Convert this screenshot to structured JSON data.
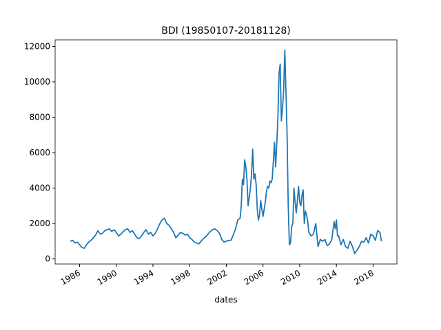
{
  "chart_data": {
    "type": "line",
    "title": "BDI (19850107-20181128)",
    "x_label": "dates",
    "xlim": [
      1983.33,
      2020.6
    ],
    "xticks": [
      1986,
      1990,
      1994,
      1998,
      2002,
      2006,
      2010,
      2014,
      2018
    ],
    "ylim": [
      -285,
      12368
    ],
    "yticks": [
      0,
      2000,
      4000,
      6000,
      8000,
      10000,
      12000
    ],
    "x": [
      1985.0,
      1985.25,
      1985.5,
      1985.75,
      1986.0,
      1986.25,
      1986.5,
      1986.75,
      1987.0,
      1987.25,
      1987.5,
      1987.75,
      1988.0,
      1988.25,
      1988.5,
      1988.75,
      1989.0,
      1989.25,
      1989.5,
      1989.75,
      1990.0,
      1990.25,
      1990.5,
      1990.75,
      1991.0,
      1991.25,
      1991.5,
      1991.75,
      1992.0,
      1992.25,
      1992.5,
      1992.75,
      1993.0,
      1993.25,
      1993.5,
      1993.75,
      1994.0,
      1994.25,
      1994.5,
      1994.75,
      1995.0,
      1995.25,
      1995.5,
      1995.75,
      1996.0,
      1996.25,
      1996.5,
      1996.75,
      1997.0,
      1997.25,
      1997.5,
      1997.75,
      1998.0,
      1998.25,
      1998.5,
      1998.75,
      1999.0,
      1999.25,
      1999.5,
      1999.75,
      2000.0,
      2000.25,
      2000.5,
      2000.75,
      2001.0,
      2001.25,
      2001.5,
      2001.75,
      2002.0,
      2002.25,
      2002.5,
      2002.75,
      2003.0,
      2003.25,
      2003.5,
      2003.625,
      2003.75,
      2003.875,
      2004.0,
      2004.125,
      2004.25,
      2004.375,
      2004.5,
      2004.625,
      2004.75,
      2004.875,
      2005.0,
      2005.125,
      2005.25,
      2005.375,
      2005.5,
      2005.625,
      2005.75,
      2005.875,
      2006.0,
      2006.125,
      2006.25,
      2006.375,
      2006.5,
      2006.625,
      2006.75,
      2006.875,
      2007.0,
      2007.125,
      2007.25,
      2007.375,
      2007.5,
      2007.625,
      2007.75,
      2007.875,
      2008.0,
      2008.125,
      2008.25,
      2008.375,
      2008.5,
      2008.625,
      2008.75,
      2008.875,
      2009.0,
      2009.125,
      2009.25,
      2009.375,
      2009.5,
      2009.625,
      2009.75,
      2009.875,
      2010.0,
      2010.125,
      2010.25,
      2010.375,
      2010.5,
      2010.625,
      2010.75,
      2010.875,
      2011.0,
      2011.25,
      2011.5,
      2011.75,
      2012.0,
      2012.25,
      2012.5,
      2012.75,
      2013.0,
      2013.25,
      2013.5,
      2013.75,
      2013.875,
      2014.0,
      2014.125,
      2014.25,
      2014.5,
      2014.75,
      2015.0,
      2015.25,
      2015.5,
      2015.75,
      2016.0,
      2016.25,
      2016.5,
      2016.75,
      2017.0,
      2017.25,
      2017.5,
      2017.75,
      2018.0,
      2018.25,
      2018.5,
      2018.75,
      2018.91
    ],
    "series": [
      {
        "name": "BDI",
        "color": "#1f77b4",
        "values": [
          1000,
          1050,
          900,
          950,
          800,
          650,
          600,
          800,
          950,
          1050,
          1200,
          1350,
          1600,
          1400,
          1450,
          1600,
          1650,
          1700,
          1550,
          1650,
          1500,
          1300,
          1400,
          1550,
          1650,
          1700,
          1500,
          1600,
          1400,
          1200,
          1150,
          1300,
          1500,
          1650,
          1400,
          1500,
          1300,
          1450,
          1700,
          2000,
          2200,
          2300,
          2000,
          1900,
          1700,
          1500,
          1200,
          1350,
          1500,
          1450,
          1350,
          1400,
          1200,
          1100,
          950,
          900,
          850,
          1000,
          1150,
          1250,
          1400,
          1550,
          1650,
          1700,
          1600,
          1450,
          1100,
          950,
          1000,
          1050,
          1050,
          1350,
          1700,
          2200,
          2300,
          3000,
          4500,
          4200,
          5600,
          5200,
          4500,
          3000,
          3500,
          4000,
          4800,
          6200,
          4500,
          4800,
          4200,
          2800,
          2200,
          2500,
          3300,
          2800,
          2400,
          2800,
          3200,
          3800,
          4100,
          4000,
          4400,
          4300,
          4500,
          5500,
          6600,
          5200,
          6500,
          8000,
          10500,
          11000,
          7800,
          8500,
          9500,
          11793,
          9500,
          7000,
          3000,
          800,
          900,
          1800,
          2000,
          4000,
          3200,
          2600,
          3300,
          4100,
          3200,
          3000,
          3600,
          3900,
          2000,
          2700,
          2500,
          2100,
          1500,
          1300,
          1400,
          2000,
          700,
          1100,
          1000,
          1100,
          750,
          850,
          1100,
          2100,
          1700,
          2200,
          1300,
          1300,
          800,
          1100,
          700,
          600,
          1000,
          700,
          300,
          500,
          700,
          1000,
          950,
          1200,
          900,
          1400,
          1300,
          1050,
          1600,
          1500,
          1000
        ]
      }
    ]
  }
}
